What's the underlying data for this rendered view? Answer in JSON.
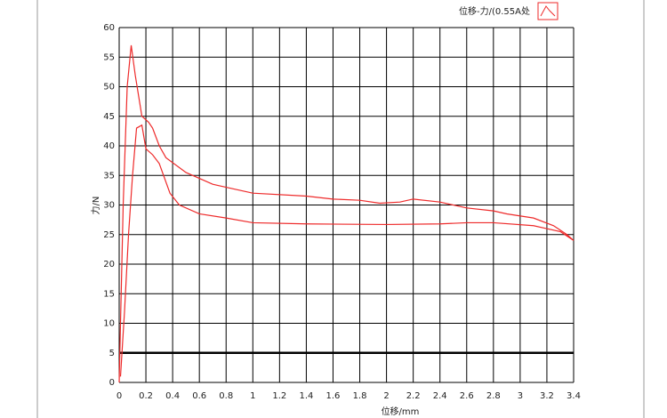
{
  "chart_data": {
    "type": "line",
    "legend_label": "位移-力/(0.55A处",
    "x_label": "位移/mm",
    "y_label": "力/N",
    "x": [
      0,
      0.03,
      0.06,
      0.09,
      0.12,
      0.17,
      0.22,
      0.25,
      0.3,
      0.35,
      0.5,
      0.7,
      0.8,
      1.0,
      1.4,
      1.6,
      1.8,
      1.95,
      2.1,
      2.2,
      2.4,
      2.6,
      2.8,
      2.9,
      3.1,
      3.25,
      3.35,
      3.4,
      3.3,
      3.1,
      2.8,
      2.6,
      2.4,
      2.0,
      1.4,
      1.0,
      0.8,
      0.6,
      0.45,
      0.38,
      0.3,
      0.25,
      0.2,
      0.17,
      0.13,
      0.1,
      0.07,
      0.04,
      0.01
    ],
    "series": [
      {
        "name": "位移-力/(0.55A处",
        "color": "#ee2a2a",
        "values": [
          0,
          30,
          50,
          57,
          52,
          45,
          44,
          43,
          40,
          38,
          35.5,
          33.5,
          33,
          32,
          31.5,
          31,
          30.8,
          30.3,
          30.5,
          31,
          30.5,
          29.5,
          29,
          28.5,
          27.8,
          26.5,
          25,
          24,
          25.5,
          26.5,
          27,
          27,
          26.8,
          26.7,
          26.8,
          27,
          27.8,
          28.5,
          30,
          32,
          37,
          38.5,
          39.5,
          43.5,
          43,
          35,
          25,
          12,
          1
        ]
      }
    ],
    "xlim": [
      0,
      3.4
    ],
    "ylim": [
      0,
      60
    ],
    "xticks": [
      0,
      0.2,
      0.4,
      0.6,
      0.8,
      1,
      1.2,
      1.4,
      1.6,
      1.8,
      2,
      2.2,
      2.4,
      2.6,
      2.8,
      3,
      3.2,
      3.4
    ],
    "yticks": [
      0,
      5,
      10,
      15,
      20,
      25,
      30,
      35,
      40,
      45,
      50,
      55,
      60
    ],
    "hline": 5,
    "grid": true
  }
}
